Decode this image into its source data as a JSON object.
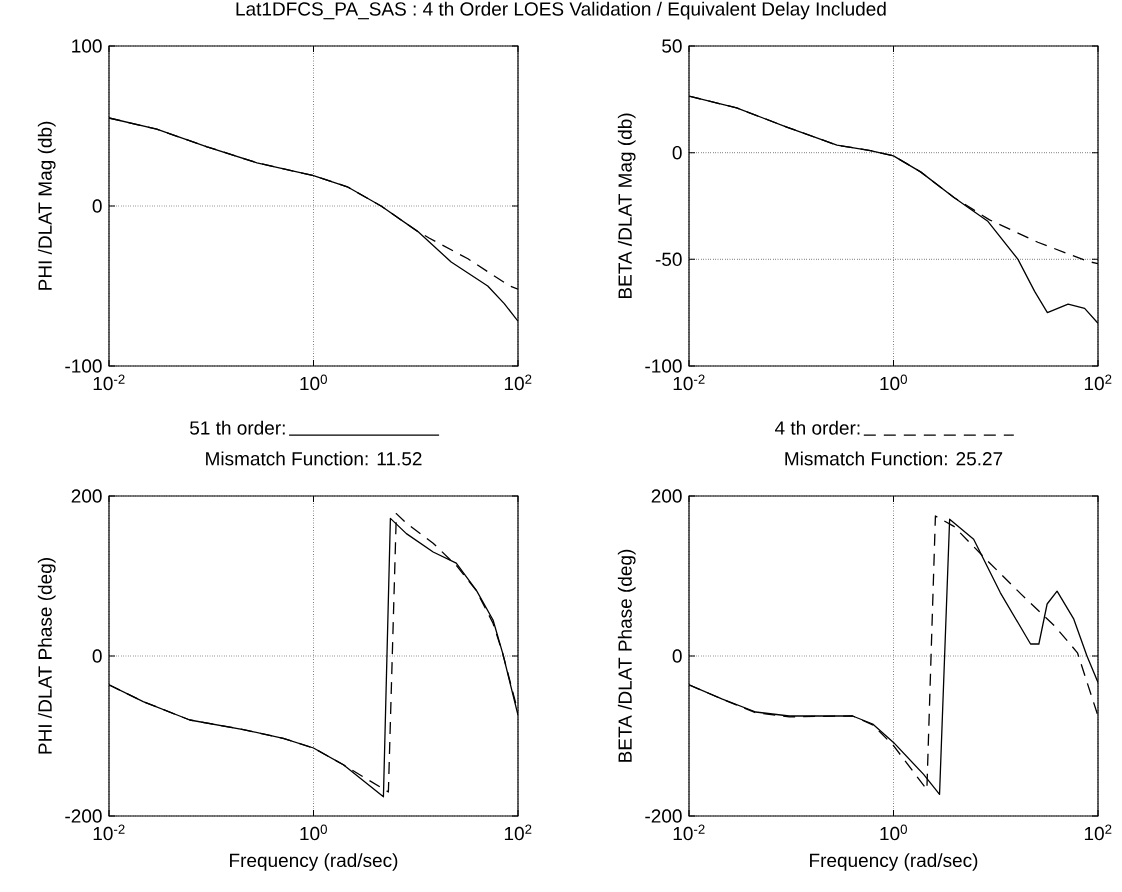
{
  "chart_data": [
    {
      "type": "line",
      "title": "Lat1DFCS_PA_SAS : 4 th Order LOES Validation / Equivalent Delay Included",
      "ylabel": "PHI /DLAT Mag (db)",
      "log": "x",
      "grid": true,
      "legend": "bottom",
      "xlim": [
        0.01,
        100
      ],
      "xticks": [
        {
          "value": 0.01,
          "label": "10$^{-2}$"
        },
        {
          "value": 1,
          "label": "10$^{0}$"
        },
        {
          "value": 100,
          "label": "10$^{2}$"
        }
      ],
      "ylim": [
        -100,
        100
      ],
      "yticks": [
        -100,
        0,
        100
      ],
      "series": [
        {
          "name": "51 th order:",
          "color": "#000000",
          "line_style": "solid",
          "x": [
            0.01,
            0.0293,
            0.091,
            0.28,
            1,
            2.14,
            4.58,
            10.5,
            22.2,
            50.6,
            73.4,
            100
          ],
          "values": [
            55,
            48,
            37,
            27,
            19,
            12,
            0,
            -16,
            -35,
            -50,
            -61,
            -72
          ]
        },
        {
          "color": "#000000",
          "line_style": "dashed",
          "x": [
            0.01,
            0.0293,
            0.091,
            0.28,
            1,
            2.14,
            4.58,
            10.5,
            13.5,
            32.4,
            83,
            100
          ],
          "values": [
            55,
            48,
            37,
            27,
            19,
            12,
            0,
            -16,
            -20,
            -33,
            -50,
            -52
          ]
        }
      ]
    },
    {
      "type": "line",
      "ylabel": "BETA /DLAT Mag (db)",
      "log": "x",
      "grid": true,
      "legend": "bottom",
      "xlim": [
        0.01,
        100
      ],
      "xticks": [
        {
          "value": 0.01,
          "label": "10$^{-2}$"
        },
        {
          "value": 1,
          "label": "10$^{0}$"
        },
        {
          "value": 100,
          "label": "10$^{2}$"
        }
      ],
      "ylim": [
        -100,
        50
      ],
      "yticks": [
        -100,
        -50,
        0,
        50
      ],
      "series": [
        {
          "color": "#000000",
          "line_style": "solid",
          "x": [
            0.01,
            0.0292,
            0.0903,
            0.28,
            0.594,
            1,
            1.84,
            3.9,
            8.3,
            16.5,
            24,
            32,
            51,
            74,
            100
          ],
          "values": [
            26.5,
            21,
            12,
            3.5,
            1,
            -1.5,
            -9,
            -21,
            -32,
            -50,
            -65,
            -75,
            -71,
            -73,
            -80
          ]
        },
        {
          "name": "4 th order:",
          "color": "#000000",
          "line_style": "dashed",
          "x": [
            0.01,
            0.0292,
            0.0903,
            0.28,
            0.594,
            1,
            1.84,
            3.9,
            8.7,
            25.8,
            80,
            100
          ],
          "values": [
            26.5,
            21,
            12,
            3.5,
            1,
            -1.5,
            -9,
            -21,
            -31.5,
            -42,
            -51,
            -52
          ]
        }
      ]
    },
    {
      "type": "line",
      "title": "Mismatch Function: 11.52",
      "xlabel": "Frequency (rad/sec)",
      "ylabel": "PHI /DLAT Phase (deg)",
      "log": "x",
      "grid": true,
      "xlim": [
        0.01,
        100
      ],
      "xticks": [
        {
          "value": 0.01,
          "label": "10$^{-2}$"
        },
        {
          "value": 1,
          "label": "10$^{0}$"
        },
        {
          "value": 100,
          "label": "10$^{2}$"
        }
      ],
      "ylim": [
        -200,
        200
      ],
      "yticks": [
        -200,
        0,
        200
      ],
      "series": [
        {
          "color": "#000000",
          "line_style": "solid",
          "x": [
            0.01,
            0.0216,
            0.0617,
            0.206,
            0.506,
            1,
            1.96,
            4.83,
            5.65,
            8.1,
            14.8,
            24.9,
            39.2,
            57,
            71,
            100
          ],
          "values": [
            -36,
            -57,
            -80,
            -92,
            -103,
            -115,
            -136,
            -176,
            172,
            153,
            130,
            116,
            82,
            45,
            3,
            -74
          ]
        },
        {
          "color": "#000000",
          "line_style": "dashed",
          "x": [
            0.01,
            0.0216,
            0.0617,
            0.206,
            0.506,
            1,
            1.96,
            5.4,
            6.46,
            8.1,
            14.8,
            25.4,
            39,
            57,
            71,
            100
          ],
          "values": [
            -36,
            -57,
            -80,
            -92,
            -103,
            -115,
            -136,
            -170,
            178,
            166,
            141,
            112,
            82,
            41,
            3,
            -70
          ]
        }
      ]
    },
    {
      "type": "line",
      "title": "Mismatch Function: 25.27",
      "xlabel": "Frequency (rad/sec)",
      "ylabel": "BETA /DLAT Phase (deg)",
      "log": "x",
      "grid": true,
      "xlim": [
        0.01,
        100
      ],
      "xticks": [
        {
          "value": 0.01,
          "label": "10$^{-2}$"
        },
        {
          "value": 1,
          "label": "10$^{0}$"
        },
        {
          "value": 100,
          "label": "10$^{2}$"
        }
      ],
      "ylim": [
        -200,
        200
      ],
      "yticks": [
        -200,
        0,
        200
      ],
      "series": [
        {
          "color": "#000000",
          "line_style": "solid",
          "x": [
            0.01,
            0.0212,
            0.045,
            0.0955,
            0.398,
            0.626,
            1,
            1.97,
            2.82,
            3.54,
            6.08,
            11.1,
            21.9,
            26.4,
            31.8,
            39.8,
            58,
            78,
            100
          ],
          "values": [
            -36,
            -54,
            -70,
            -75,
            -75,
            -85,
            -108,
            -148,
            -173,
            171,
            146,
            79,
            15,
            15,
            65,
            81,
            46,
            0,
            -33
          ]
        },
        {
          "color": "#000000",
          "line_style": "dashed",
          "x": [
            0.01,
            0.0212,
            0.045,
            0.0955,
            0.398,
            0.626,
            1,
            2.12,
            2.57,
            3.9,
            8.3,
            17.8,
            38,
            63,
            100
          ],
          "values": [
            -36,
            -54,
            -71,
            -76,
            -75,
            -86,
            -112,
            -167,
            175,
            162,
            119,
            77,
            37,
            4,
            -75
          ]
        }
      ]
    }
  ]
}
